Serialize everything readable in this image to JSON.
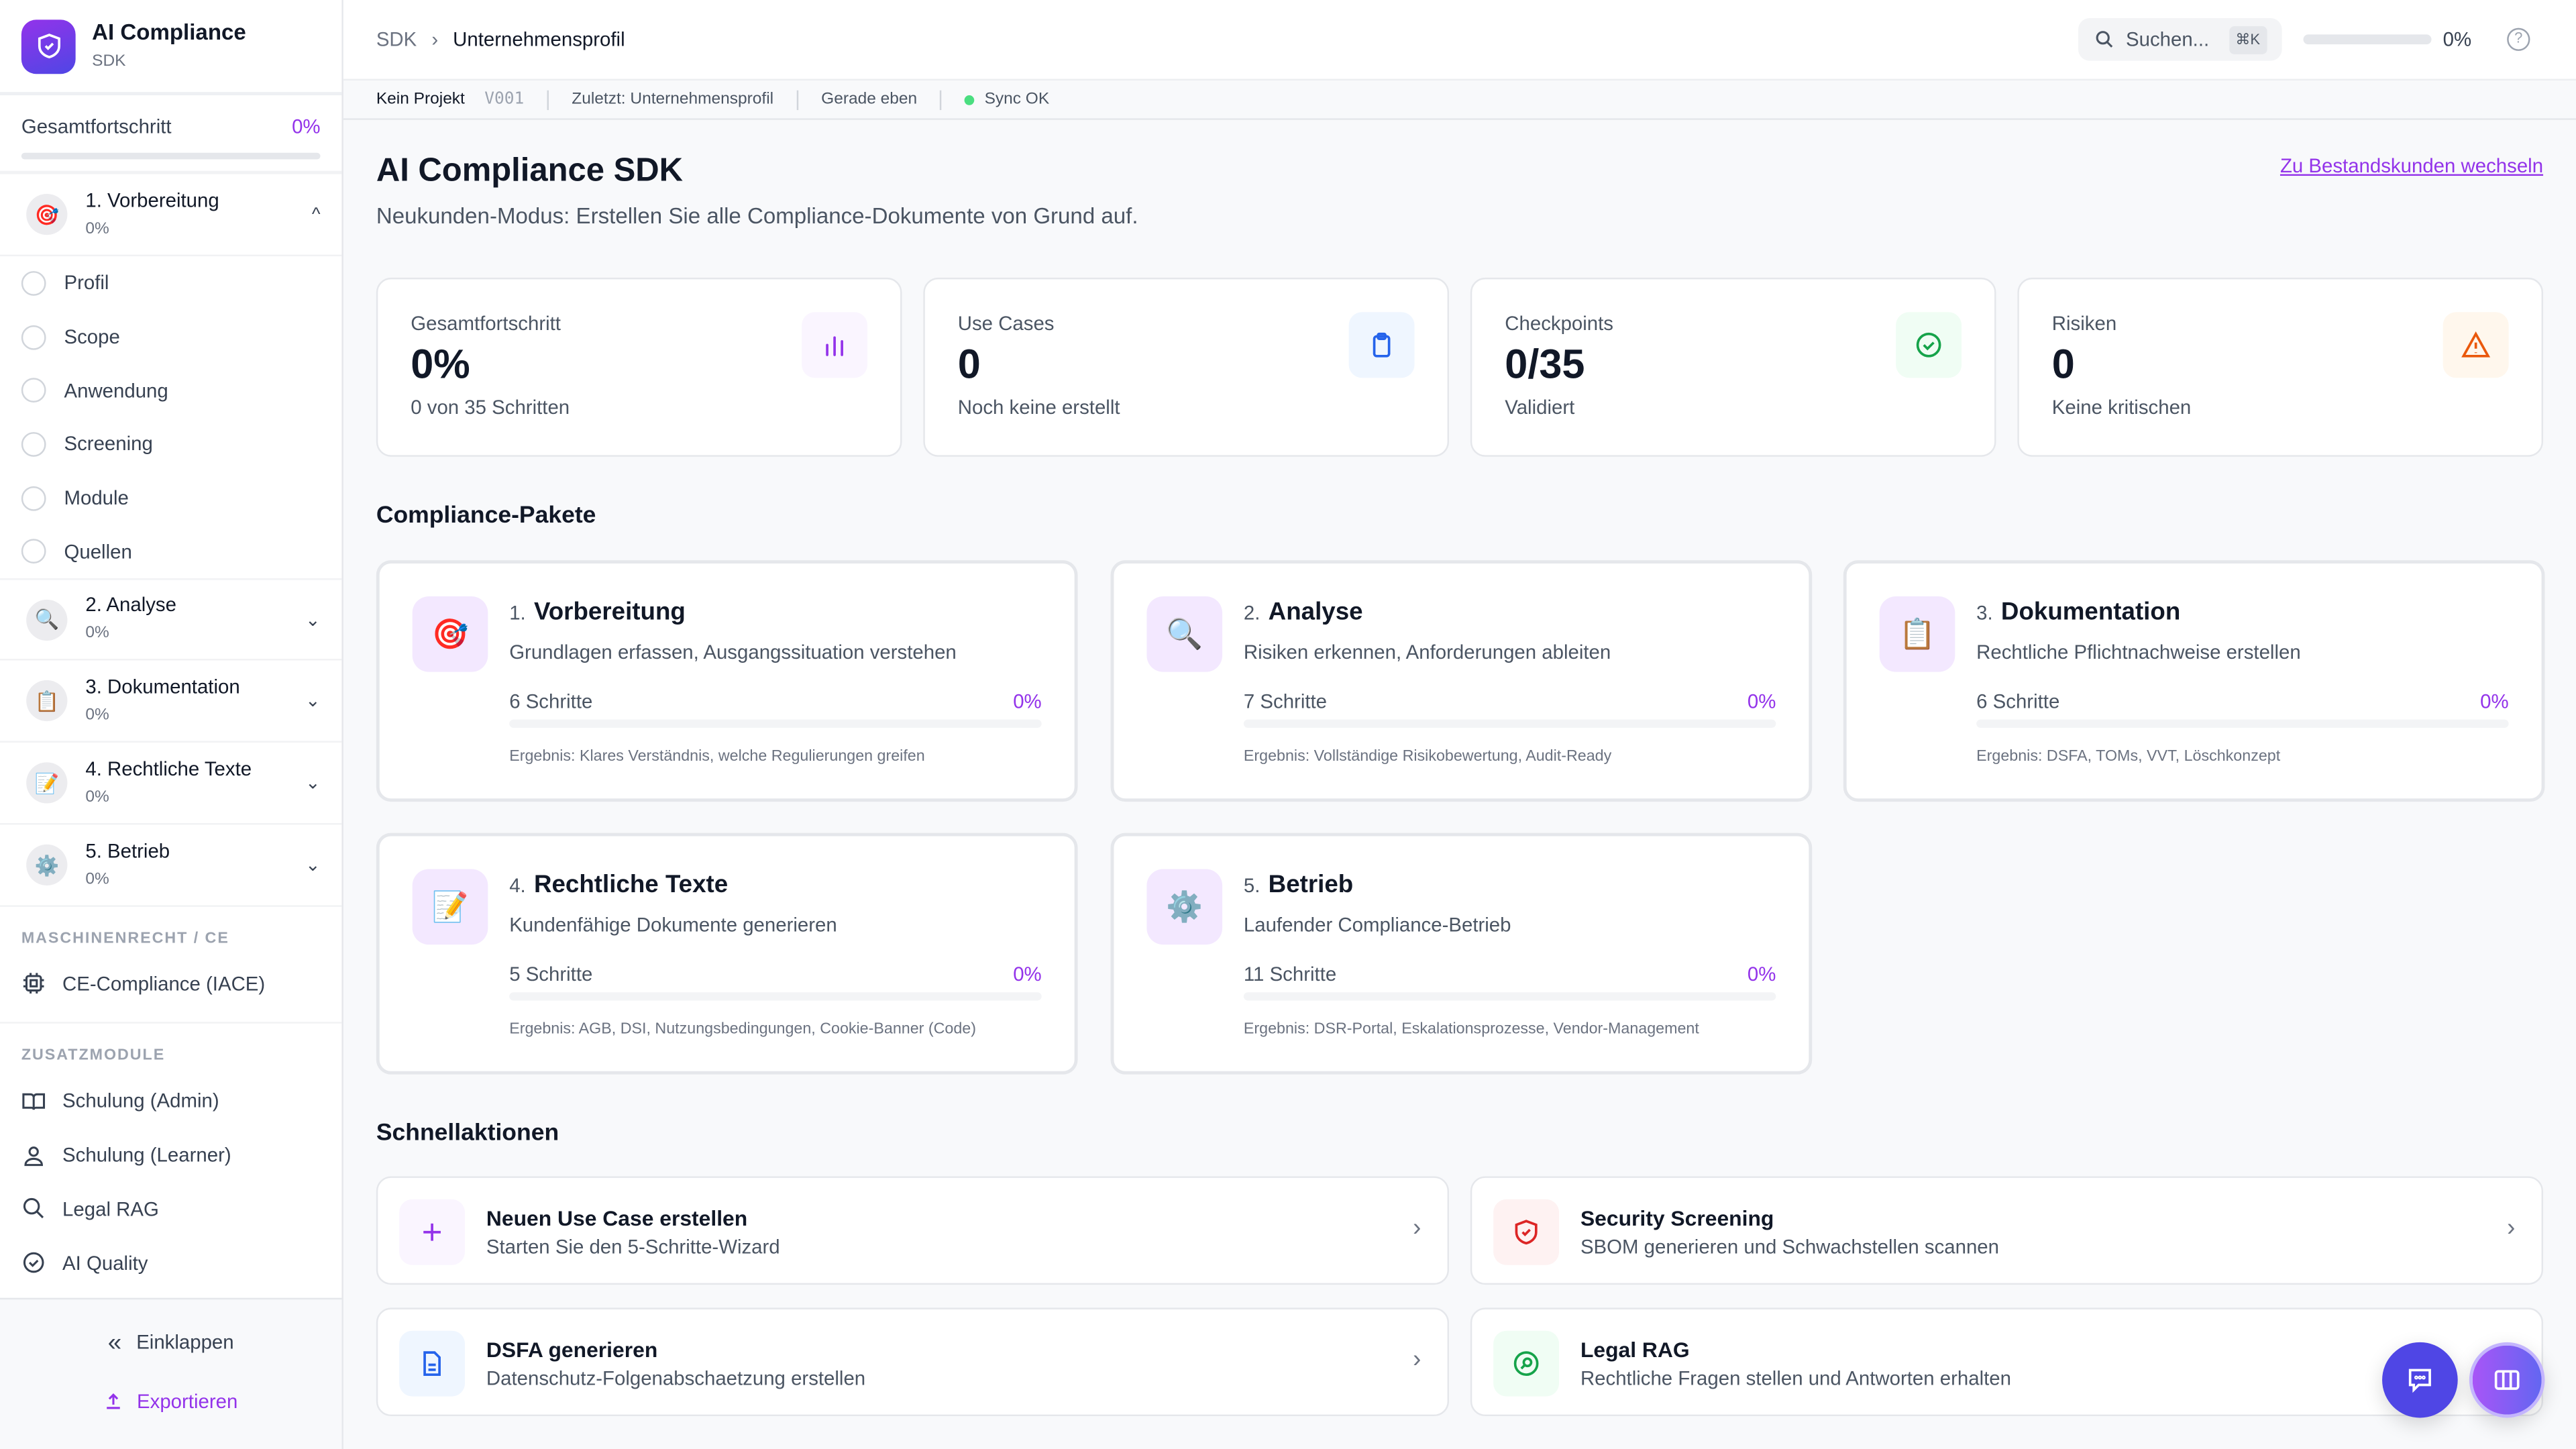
{
  "brand": {
    "title": "AI Compliance",
    "subtitle": "SDK"
  },
  "sidebar": {
    "progress_label": "Gesamtfortschritt",
    "progress_value": "0%",
    "progress_fraction": 0,
    "phases": [
      {
        "icon": "🎯",
        "label": "1. Vorbereitung",
        "pct": "0%",
        "expanded": true,
        "chevron": "^",
        "steps": [
          "Profil",
          "Scope",
          "Anwendung",
          "Screening",
          "Module",
          "Quellen"
        ]
      },
      {
        "icon": "🔍",
        "label": "2. Analyse",
        "pct": "0%",
        "chevron": "⌄"
      },
      {
        "icon": "📋",
        "label": "3. Dokumentation",
        "pct": "0%",
        "chevron": "⌄"
      },
      {
        "icon": "📝",
        "label": "4. Rechtliche Texte",
        "pct": "0%",
        "chevron": "⌄"
      },
      {
        "icon": "⚙️",
        "label": "5. Betrieb",
        "pct": "0%",
        "chevron": "⌄"
      }
    ],
    "section_ce": "MASCHINENRECHT / CE",
    "ce_item": "CE-Compliance (IACE)",
    "section_extra": "ZUSATZMODULE",
    "extra_items": [
      "Schulung (Admin)",
      "Schulung (Learner)",
      "Legal RAG",
      "AI Quality"
    ],
    "collapse": "Einklappen",
    "export": "Exportieren"
  },
  "header": {
    "crumb_root": "SDK",
    "crumb_current": "Unternehmensprofil",
    "search_placeholder": "Suchen...",
    "shortcut": "⌘K",
    "progress": "0%",
    "progress_fraction": 0,
    "help": "?"
  },
  "statusbar": {
    "project": "Kein Projekt",
    "version": "V001",
    "last": "Zuletzt: Unternehmensprofil",
    "time": "Gerade eben",
    "sync": "Sync OK"
  },
  "page": {
    "title": "AI Compliance SDK",
    "subtitle": "Neukunden-Modus: Erstellen Sie alle Compliance-Dokumente von Grund auf.",
    "switch_link": "Zu Bestandskunden wechseln"
  },
  "stats": [
    {
      "label": "Gesamtfortschritt",
      "value": "0%",
      "sub": "0 von 35 Schritten",
      "icon": "bar-chart",
      "color": "#9333ea"
    },
    {
      "label": "Use Cases",
      "value": "0",
      "sub": "Noch keine erstellt",
      "icon": "clipboard",
      "color": "#2563eb"
    },
    {
      "label": "Checkpoints",
      "value": "0/35",
      "sub": "Validiert",
      "icon": "check-circle",
      "color": "#16a34a"
    },
    {
      "label": "Risiken",
      "value": "0",
      "sub": "Keine kritischen",
      "icon": "warning",
      "color": "#ea580c"
    }
  ],
  "packages_title": "Compliance-Pakete",
  "packages": [
    {
      "num": "1.",
      "title": "Vorbereitung",
      "desc": "Grundlagen erfassen, Ausgangssituation verstehen",
      "steps": "6 Schritte",
      "pct": "0%",
      "result": "Ergebnis: Klares Verständnis, welche Regulierungen greifen",
      "icon": "🎯"
    },
    {
      "num": "2.",
      "title": "Analyse",
      "desc": "Risiken erkennen, Anforderungen ableiten",
      "steps": "7 Schritte",
      "pct": "0%",
      "result": "Ergebnis: Vollständige Risikobewertung, Audit-Ready",
      "icon": "🔍"
    },
    {
      "num": "3.",
      "title": "Dokumentation",
      "desc": "Rechtliche Pflichtnachweise erstellen",
      "steps": "6 Schritte",
      "pct": "0%",
      "result": "Ergebnis: DSFA, TOMs, VVT, Löschkonzept",
      "icon": "📋"
    },
    {
      "num": "4.",
      "title": "Rechtliche Texte",
      "desc": "Kundenfähige Dokumente generieren",
      "steps": "5 Schritte",
      "pct": "0%",
      "result": "Ergebnis: AGB, DSI, Nutzungsbedingungen, Cookie-Banner (Code)",
      "icon": "📝"
    },
    {
      "num": "5.",
      "title": "Betrieb",
      "desc": "Laufender Compliance-Betrieb",
      "steps": "11 Schritte",
      "pct": "0%",
      "result": "Ergebnis: DSR-Portal, Eskalationsprozesse, Vendor-Management",
      "icon": "⚙️"
    }
  ],
  "quick_title": "Schnellaktionen",
  "quick": [
    {
      "title": "Neuen Use Case erstellen",
      "sub": "Starten Sie den 5-Schritte-Wizard",
      "icon": "plus",
      "color": "#9333ea",
      "bg": "#faf5ff"
    },
    {
      "title": "Security Screening",
      "sub": "SBOM generieren und Schwachstellen scannen",
      "icon": "shield",
      "color": "#dc2626",
      "bg": "#fef2f2"
    },
    {
      "title": "DSFA generieren",
      "sub": "Datenschutz-Folgenabschaetzung erstellen",
      "icon": "document",
      "color": "#2563eb",
      "bg": "#eff6ff"
    },
    {
      "title": "Legal RAG",
      "sub": "Rechtliche Fragen stellen und Antworten erhalten",
      "icon": "search-circle",
      "color": "#16a34a",
      "bg": "#f0fdf4"
    }
  ],
  "colors": {
    "accent": "#9333ea",
    "fab_chat": "#4f46e5"
  }
}
